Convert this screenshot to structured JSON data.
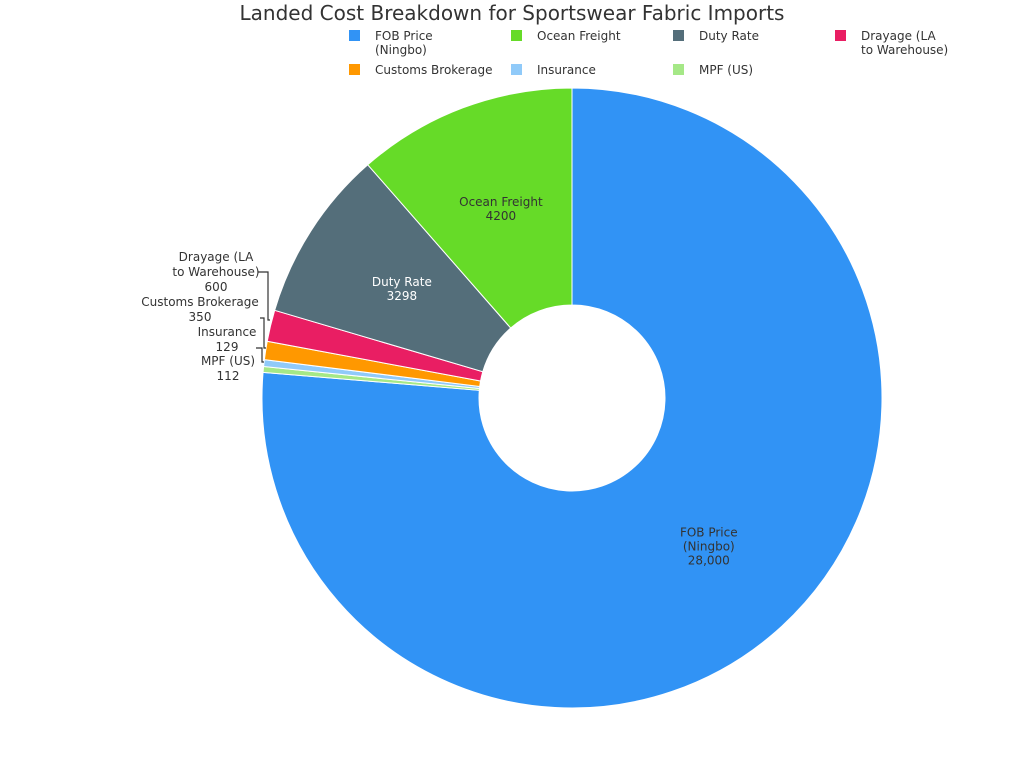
{
  "chart_data": {
    "type": "pie",
    "hole": true,
    "title": "Landed Cost Breakdown for Sportswear Fabric Imports",
    "legend_position": "top",
    "slices": [
      {
        "label": "FOB Price (Ningbo)",
        "label_lines": [
          "FOB Price",
          "(Ningbo)"
        ],
        "value": 28000,
        "value_text": "28,000",
        "color": "#3193f5"
      },
      {
        "label": "Ocean Freight",
        "label_lines": [
          "Ocean Freight"
        ],
        "value": 4200,
        "value_text": "4200",
        "color": "#66db28"
      },
      {
        "label": "Duty Rate",
        "label_lines": [
          "Duty Rate"
        ],
        "value": 3298,
        "value_text": "3298",
        "color": "#546e7a"
      },
      {
        "label": "Drayage (LA to Warehouse)",
        "label_lines": [
          "Drayage (LA",
          "to Warehouse)"
        ],
        "value": 600,
        "value_text": "600",
        "color": "#e91e63"
      },
      {
        "label": "Customs Brokerage",
        "label_lines": [
          "Customs Brokerage"
        ],
        "value": 350,
        "value_text": "350",
        "color": "#ff9800"
      },
      {
        "label": "Insurance",
        "label_lines": [
          "Insurance"
        ],
        "value": 129,
        "value_text": "129",
        "color": "#90caf9"
      },
      {
        "label": "MPF (US)",
        "label_lines": [
          "MPF (US)"
        ],
        "value": 112,
        "value_text": "112",
        "color": "#a5e887"
      }
    ]
  }
}
